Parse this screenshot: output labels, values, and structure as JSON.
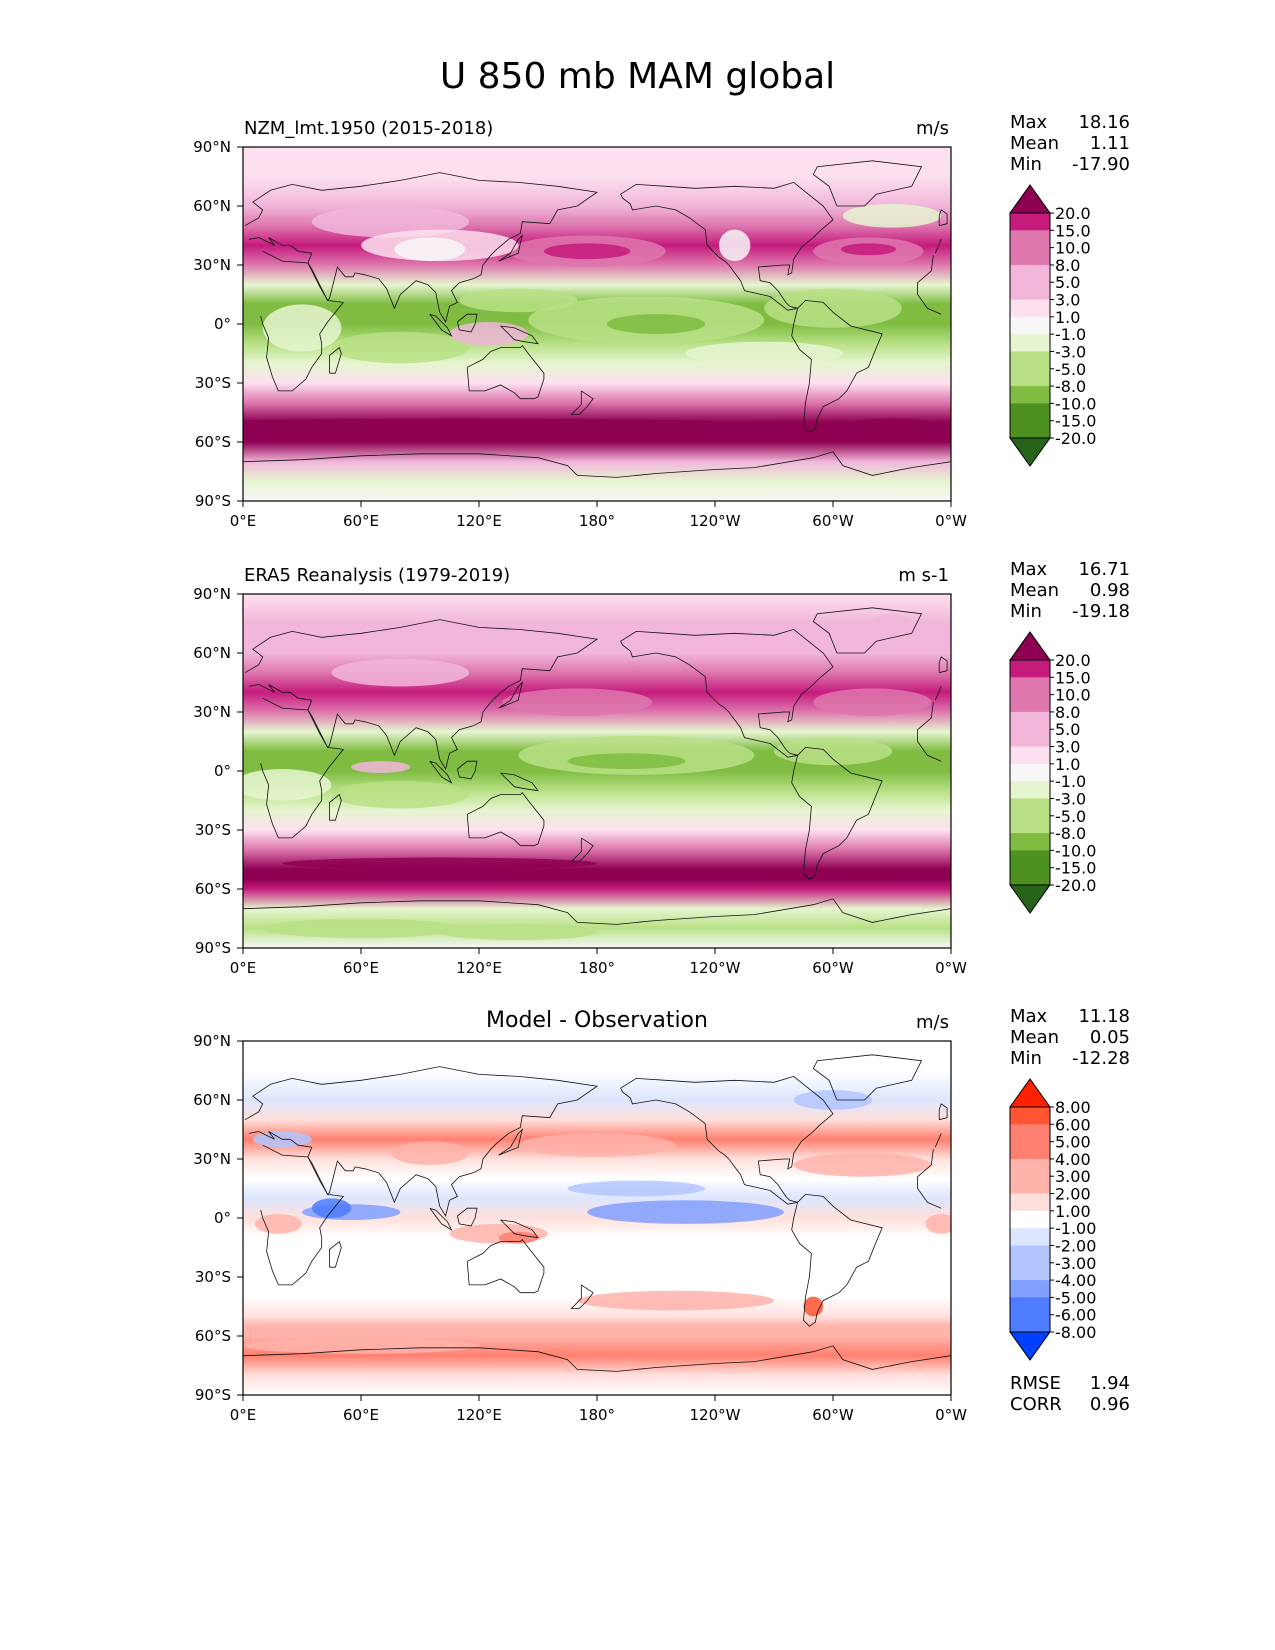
{
  "figure": {
    "title": "U 850 mb MAM global"
  },
  "colors": {
    "pink_scale": [
      "#276419",
      "#4d9221",
      "#7fbc41",
      "#b8e186",
      "#e6f5d0",
      "#f7f7f7",
      "#fde0ef",
      "#f1b6da",
      "#de77ae",
      "#c51b7d",
      "#8e0152"
    ],
    "diff_scale": [
      "#0040ff",
      "#4d7cff",
      "#809fff",
      "#b3c6ff",
      "#dde6ff",
      "#ffffff",
      "#ffe0dc",
      "#ffb3aa",
      "#ff8070",
      "#ff5533",
      "#ff2200"
    ]
  },
  "chart_data": [
    {
      "type": "heatmap",
      "panel": "model",
      "title": "NZM_lmt.1950 (2015-2018)",
      "units": "m/s",
      "stats": {
        "max_label": "Max",
        "max": "18.16",
        "mean_label": "Mean",
        "mean": "1.11",
        "min_label": "Min",
        "min": "-17.90"
      },
      "colorbar_levels": [
        "20.0",
        "15.0",
        "10.0",
        "8.0",
        "5.0",
        "3.0",
        "1.0",
        "-1.0",
        "-3.0",
        "-5.0",
        "-8.0",
        "-10.0",
        "-15.0",
        "-20.0"
      ],
      "x_ticks": [
        "0°E",
        "60°E",
        "120°E",
        "180°",
        "120°W",
        "60°W",
        "0°W"
      ],
      "y_ticks": [
        "90°N",
        "60°N",
        "30°N",
        "0°",
        "30°S",
        "60°S",
        "90°S"
      ],
      "xlim": [
        0,
        360
      ],
      "ylim": [
        -90,
        90
      ],
      "zonal_profile": {
        "lat": [
          90,
          75,
          60,
          50,
          40,
          30,
          20,
          10,
          0,
          -10,
          -20,
          -30,
          -40,
          -50,
          -55,
          -60,
          -70,
          -80,
          -90
        ],
        "u": [
          1,
          2,
          4,
          6,
          10,
          6,
          -2,
          -6,
          -7,
          -4,
          -3,
          2,
          6,
          13,
          14,
          12,
          4,
          -2,
          0
        ]
      }
    },
    {
      "type": "heatmap",
      "panel": "observation",
      "title": "ERA5 Reanalysis (1979-2019)",
      "units": "m s-1",
      "stats": {
        "max_label": "Max",
        "max": "16.71",
        "mean_label": "Mean",
        "mean": "0.98",
        "min_label": "Min",
        "min": "-19.18"
      },
      "colorbar_levels": [
        "20.0",
        "15.0",
        "10.0",
        "8.0",
        "5.0",
        "3.0",
        "1.0",
        "-1.0",
        "-3.0",
        "-5.0",
        "-8.0",
        "-10.0",
        "-15.0",
        "-20.0"
      ],
      "x_ticks": [
        "0°E",
        "60°E",
        "120°E",
        "180°",
        "120°W",
        "60°W",
        "0°W"
      ],
      "y_ticks": [
        "90°N",
        "60°N",
        "30°N",
        "0°",
        "30°S",
        "60°S",
        "90°S"
      ],
      "xlim": [
        0,
        360
      ],
      "ylim": [
        -90,
        90
      ],
      "zonal_profile": {
        "lat": [
          90,
          75,
          60,
          50,
          40,
          30,
          20,
          10,
          0,
          -10,
          -20,
          -30,
          -40,
          -50,
          -55,
          -60,
          -70,
          -80,
          -90
        ],
        "u": [
          2,
          3,
          4,
          5,
          8,
          5,
          -3,
          -7,
          -8,
          -5,
          -3,
          2,
          7,
          13,
          13,
          11,
          -2,
          -4,
          0
        ]
      }
    },
    {
      "type": "heatmap",
      "panel": "difference",
      "title": "Model - Observation",
      "units": "m/s",
      "stats": {
        "max_label": "Max",
        "max": "11.18",
        "mean_label": "Mean",
        "mean": "0.05",
        "min_label": "Min",
        "min": "-12.28"
      },
      "metrics": {
        "rmse_label": "RMSE",
        "rmse": "1.94",
        "corr_label": "CORR",
        "corr": "0.96"
      },
      "colorbar_levels": [
        "8.00",
        "6.00",
        "5.00",
        "4.00",
        "3.00",
        "2.00",
        "1.00",
        "-1.00",
        "-2.00",
        "-3.00",
        "-4.00",
        "-5.00",
        "-6.00",
        "-8.00"
      ],
      "x_ticks": [
        "0°E",
        "60°E",
        "120°E",
        "180°",
        "120°W",
        "60°W",
        "0°W"
      ],
      "y_ticks": [
        "90°N",
        "60°N",
        "30°N",
        "0°",
        "30°S",
        "60°S",
        "90°S"
      ],
      "xlim": [
        0,
        360
      ],
      "ylim": [
        -90,
        90
      ],
      "zonal_profile": {
        "lat": [
          90,
          75,
          60,
          50,
          40,
          30,
          20,
          10,
          0,
          -10,
          -20,
          -30,
          -40,
          -50,
          -55,
          -60,
          -70,
          -80,
          -90
        ],
        "u": [
          0,
          -1,
          -2,
          1,
          3,
          1,
          -1,
          -2,
          1,
          0,
          -1,
          0,
          -1,
          1,
          2,
          2,
          3,
          1,
          0
        ]
      }
    }
  ]
}
